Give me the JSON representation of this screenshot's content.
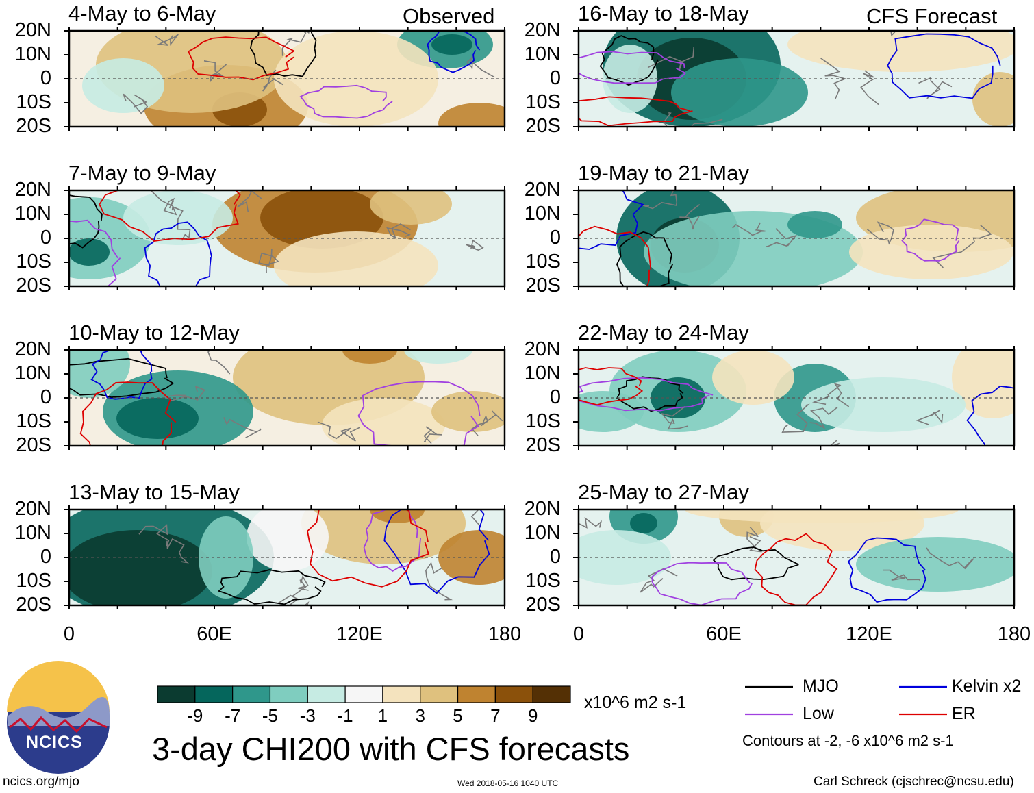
{
  "chart_data": {
    "type": "heatmap",
    "title": "3-day CHI200 with CFS forecasts",
    "units": "x10^6 m2 s-1",
    "column_headers": [
      "Observed",
      "CFS Forecast"
    ],
    "x_ticks": [
      "0",
      "60E",
      "120E",
      "180"
    ],
    "y_ticks": [
      "20N",
      "10N",
      "0",
      "10S",
      "20S"
    ],
    "xlim": [
      0,
      180
    ],
    "ylim": [
      -20,
      20
    ],
    "colorbar": {
      "ticks": [
        "-9",
        "-7",
        "-5",
        "-3",
        "-1",
        "1",
        "3",
        "5",
        "7",
        "9"
      ],
      "colors": [
        "#0b3b30",
        "#05665c",
        "#2f978b",
        "#7fcdbf",
        "#c6ebe3",
        "#f6f6f6",
        "#f4e3be",
        "#dfc17e",
        "#bf8330",
        "#8b510b",
        "#543005"
      ]
    },
    "panels": [
      {
        "period": "4-May to 6-May",
        "column": "Observed"
      },
      {
        "period": "7-May to 9-May",
        "column": "Observed"
      },
      {
        "period": "10-May to 12-May",
        "column": "Observed"
      },
      {
        "period": "13-May to 15-May",
        "column": "Observed"
      },
      {
        "period": "16-May to 18-May",
        "column": "CFS Forecast"
      },
      {
        "period": "19-May to 21-May",
        "column": "CFS Forecast"
      },
      {
        "period": "22-May to 24-May",
        "column": "CFS Forecast"
      },
      {
        "period": "25-May to 27-May",
        "column": "CFS Forecast"
      }
    ],
    "legend": [
      {
        "label": "MJO",
        "color": "#000000"
      },
      {
        "label": "Kelvin x2",
        "color": "#0000dd"
      },
      {
        "label": "Low",
        "color": "#a040e0"
      },
      {
        "label": "ER",
        "color": "#dd0000"
      }
    ],
    "contour_note": "Contours at -2, -6 x10^6 m2 s-1"
  },
  "footer": {
    "left": "ncics.org/mjo",
    "center": "Wed 2018-05-16 1040 UTC",
    "right": "Carl Schreck (cjschrec@ncsu.edu)"
  },
  "logo": {
    "text": "NCICS"
  }
}
